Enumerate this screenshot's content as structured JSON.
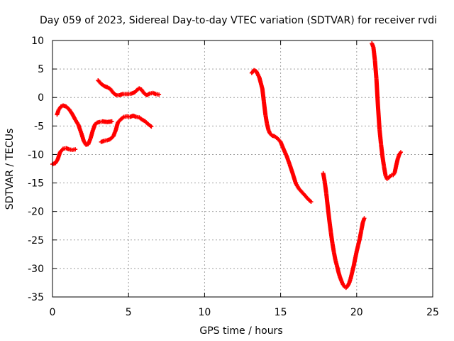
{
  "chart_data": {
    "type": "scatter",
    "title": "Day 059 of 2023, Sidereal Day-to-day VTEC variation (SDTVAR) for receiver rvdi",
    "xlabel": "GPS time / hours",
    "ylabel": "SDTVAR / TECUs",
    "xlim": [
      0,
      25
    ],
    "ylim": [
      -35,
      10
    ],
    "xticks": [
      "0",
      "5",
      "10",
      "15",
      "20",
      "25"
    ],
    "yticks": [
      "10",
      "5",
      "0",
      "-5",
      "-10",
      "-15",
      "-20",
      "-25",
      "-30",
      "-35"
    ],
    "grid": true,
    "marker_color": "#ff0000",
    "series": [
      {
        "x": [
          0.0,
          0.2,
          0.35,
          0.5,
          0.7,
          0.9,
          1.1,
          1.3,
          1.5
        ],
        "y": [
          -11.7,
          -11.5,
          -10.8,
          -9.6,
          -9.0,
          -8.9,
          -9.1,
          -9.2,
          -9.1
        ]
      },
      {
        "x": [
          0.3,
          0.4,
          0.55,
          0.7,
          0.9,
          1.1,
          1.3,
          1.5,
          1.7,
          1.9,
          2.05,
          2.2,
          2.35,
          2.5,
          2.65,
          2.8,
          2.95,
          3.1,
          3.3,
          3.6,
          3.9
        ],
        "y": [
          -3.0,
          -2.2,
          -1.6,
          -1.4,
          -1.6,
          -2.1,
          -2.9,
          -3.9,
          -4.8,
          -6.3,
          -7.6,
          -8.3,
          -8.2,
          -7.2,
          -5.8,
          -4.7,
          -4.4,
          -4.3,
          -4.2,
          -4.3,
          -4.2
        ]
      },
      {
        "x": [
          3.2,
          3.4,
          3.6,
          3.8,
          4.0,
          4.15,
          4.3,
          4.5,
          4.7,
          4.9,
          5.1,
          5.3,
          5.5,
          5.7,
          5.9,
          6.1,
          6.3,
          6.5
        ],
        "y": [
          -7.8,
          -7.6,
          -7.5,
          -7.3,
          -6.8,
          -5.8,
          -4.4,
          -3.8,
          -3.4,
          -3.3,
          -3.4,
          -3.2,
          -3.4,
          -3.5,
          -3.9,
          -4.2,
          -4.7,
          -5.1
        ]
      },
      {
        "x": [
          3.0,
          3.2,
          3.4,
          3.6,
          3.8,
          4.0,
          4.2,
          4.4,
          4.6,
          4.8,
          5.0,
          5.2,
          5.4,
          5.55,
          5.7,
          5.85,
          6.0,
          6.2,
          6.4,
          6.6,
          6.8,
          7.0
        ],
        "y": [
          3.0,
          2.4,
          2.0,
          1.8,
          1.5,
          0.8,
          0.4,
          0.4,
          0.6,
          0.6,
          0.6,
          0.7,
          0.9,
          1.3,
          1.6,
          1.4,
          0.8,
          0.4,
          0.7,
          0.8,
          0.6,
          0.5
        ]
      },
      {
        "x": [
          13.1,
          13.25,
          13.4,
          13.6,
          13.8,
          13.9,
          14.0,
          14.1,
          14.2,
          14.3,
          14.45,
          14.6,
          14.8,
          15.0,
          15.2,
          15.4,
          15.6,
          15.8,
          16.0,
          16.2,
          16.4,
          16.6,
          16.8,
          17.0
        ],
        "y": [
          4.3,
          4.8,
          4.6,
          3.5,
          1.5,
          -0.8,
          -3.0,
          -4.6,
          -5.7,
          -6.3,
          -6.7,
          -6.8,
          -7.2,
          -7.8,
          -9.1,
          -10.3,
          -11.8,
          -13.4,
          -15.1,
          -16.0,
          -16.6,
          -17.2,
          -17.8,
          -18.3
        ]
      },
      {
        "x": [
          17.8,
          17.9,
          18.0,
          18.1,
          18.2,
          18.3,
          18.4,
          18.5,
          18.6,
          18.7,
          18.8,
          18.9,
          19.0,
          19.1,
          19.2,
          19.3,
          19.4,
          19.5,
          19.6,
          19.7,
          19.8,
          19.9,
          20.0,
          20.1,
          20.2,
          20.3,
          20.4,
          20.5
        ],
        "y": [
          -13.3,
          -14.8,
          -16.8,
          -19.2,
          -21.5,
          -23.6,
          -25.5,
          -27.1,
          -28.5,
          -29.5,
          -30.6,
          -31.5,
          -32.2,
          -32.8,
          -33.2,
          -33.4,
          -33.1,
          -32.6,
          -31.8,
          -30.7,
          -29.6,
          -28.3,
          -27.0,
          -25.9,
          -24.8,
          -23.4,
          -22.0,
          -21.2
        ]
      },
      {
        "x": [
          21.0,
          21.1,
          21.2,
          21.3,
          21.4,
          21.5,
          21.6,
          21.7,
          21.8,
          21.9,
          22.0,
          22.1,
          22.2,
          22.3,
          22.4,
          22.5,
          22.6,
          22.7,
          22.8,
          22.9
        ],
        "y": [
          9.5,
          8.8,
          6.5,
          3.2,
          -1.5,
          -5.5,
          -8.2,
          -10.4,
          -12.2,
          -13.7,
          -14.3,
          -14.1,
          -13.8,
          -13.6,
          -13.6,
          -13.2,
          -11.9,
          -10.8,
          -10.0,
          -9.6
        ]
      }
    ]
  }
}
